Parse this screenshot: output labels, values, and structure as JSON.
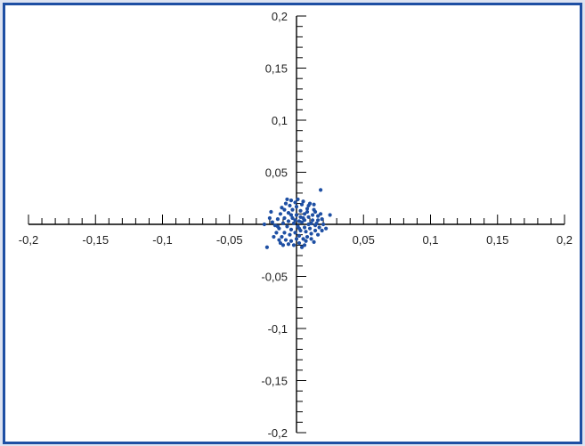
{
  "chart_data": {
    "type": "scatter",
    "title": "",
    "xlabel": "",
    "ylabel": "",
    "xlim": [
      -0.2,
      0.2
    ],
    "ylim": [
      -0.2,
      0.2
    ],
    "x_tick_labels": [
      "-0,2",
      "-0,15",
      "-0,1",
      "-0,05",
      "0,05",
      "0,1",
      "0,15",
      "0,2"
    ],
    "y_tick_labels": [
      "0,2",
      "0,15",
      "0,1",
      "0,05",
      "-0,05",
      "-0,1",
      "-0,15",
      "-0,2"
    ],
    "x_tick_values": [
      -0.2,
      -0.15,
      -0.1,
      -0.05,
      0.05,
      0.1,
      0.15,
      0.2
    ],
    "y_tick_values": [
      0.2,
      0.15,
      0.1,
      0.05,
      -0.05,
      -0.1,
      -0.15,
      -0.2
    ],
    "minor_tick_step": 0.01,
    "marker_color": "#1e4fa3",
    "points": [
      [
        0.018,
        0.033
      ],
      [
        0.025,
        0.009
      ],
      [
        0.014,
        0.012
      ],
      [
        0.01,
        0.02
      ],
      [
        -0.02,
        0.006
      ],
      [
        -0.022,
        -0.022
      ],
      [
        0.004,
        -0.022
      ],
      [
        0.013,
        -0.017
      ],
      [
        -0.012,
        -0.018
      ],
      [
        -0.018,
        0.002
      ],
      [
        -0.009,
        0.006
      ],
      [
        -0.006,
        0.011
      ],
      [
        -0.003,
        0.014
      ],
      [
        0.0,
        0.017
      ],
      [
        0.003,
        0.013
      ],
      [
        0.006,
        0.01
      ],
      [
        0.009,
        0.007
      ],
      [
        0.012,
        0.004
      ],
      [
        0.015,
        0.001
      ],
      [
        0.017,
        -0.003
      ],
      [
        0.014,
        -0.006
      ],
      [
        0.011,
        -0.009
      ],
      [
        0.008,
        -0.012
      ],
      [
        0.005,
        -0.014
      ],
      [
        0.002,
        -0.011
      ],
      [
        -0.001,
        -0.008
      ],
      [
        -0.004,
        -0.005
      ],
      [
        -0.007,
        -0.002
      ],
      [
        -0.01,
        0.001
      ],
      [
        -0.013,
        -0.004
      ],
      [
        -0.015,
        -0.008
      ],
      [
        -0.011,
        -0.012
      ],
      [
        -0.008,
        -0.015
      ],
      [
        -0.004,
        -0.016
      ],
      [
        0.0,
        -0.014
      ],
      [
        0.003,
        -0.006
      ],
      [
        0.006,
        -0.003
      ],
      [
        0.009,
        0.0
      ],
      [
        0.006,
        0.004
      ],
      [
        0.003,
        0.007
      ],
      [
        0.0,
        0.009
      ],
      [
        -0.003,
        0.006
      ],
      [
        -0.006,
        0.003
      ],
      [
        -0.002,
        0.001
      ],
      [
        0.001,
        -0.002
      ],
      [
        0.004,
        0.002
      ],
      [
        0.007,
        -0.007
      ],
      [
        0.01,
        -0.004
      ],
      [
        0.012,
        0.009
      ],
      [
        0.008,
        0.015
      ],
      [
        0.004,
        0.019
      ],
      [
        -0.001,
        0.021
      ],
      [
        -0.005,
        0.018
      ],
      [
        -0.009,
        0.014
      ],
      [
        -0.012,
        0.01
      ],
      [
        -0.014,
        0.005
      ],
      [
        -0.016,
        -0.001
      ],
      [
        -0.017,
        -0.012
      ],
      [
        -0.013,
        -0.015
      ],
      [
        -0.006,
        -0.019
      ],
      [
        -0.002,
        -0.02
      ],
      [
        0.002,
        -0.018
      ],
      [
        0.007,
        -0.016
      ],
      [
        0.011,
        -0.014
      ],
      [
        0.016,
        -0.01
      ],
      [
        0.019,
        -0.006
      ],
      [
        0.02,
        0.0
      ],
      [
        0.019,
        0.005
      ],
      [
        0.016,
        0.008
      ],
      [
        0.013,
        0.014
      ],
      [
        0.009,
        0.018
      ],
      [
        0.005,
        0.022
      ],
      [
        0.001,
        0.024
      ],
      [
        -0.004,
        0.023
      ],
      [
        -0.008,
        0.02
      ],
      [
        -0.011,
        0.016
      ],
      [
        -0.001,
        0.004
      ],
      [
        0.002,
        0.003
      ],
      [
        0.005,
        0.006
      ],
      [
        -0.004,
        0.009
      ],
      [
        0.008,
        0.012
      ],
      [
        0.011,
        0.001
      ],
      [
        0.014,
        -0.001
      ],
      [
        0.002,
        -0.004
      ],
      [
        -0.005,
        -0.01
      ],
      [
        -0.009,
        -0.008
      ],
      [
        -0.014,
        -0.002
      ],
      [
        0.016,
        0.004
      ],
      [
        0.018,
        0.01
      ],
      [
        0.022,
        -0.004
      ],
      [
        -0.024,
        0.0
      ],
      [
        -0.019,
        0.012
      ],
      [
        0.013,
        0.019
      ],
      [
        -0.007,
        0.024
      ],
      [
        0.006,
        -0.02
      ],
      [
        -0.01,
        -0.02
      ]
    ]
  }
}
